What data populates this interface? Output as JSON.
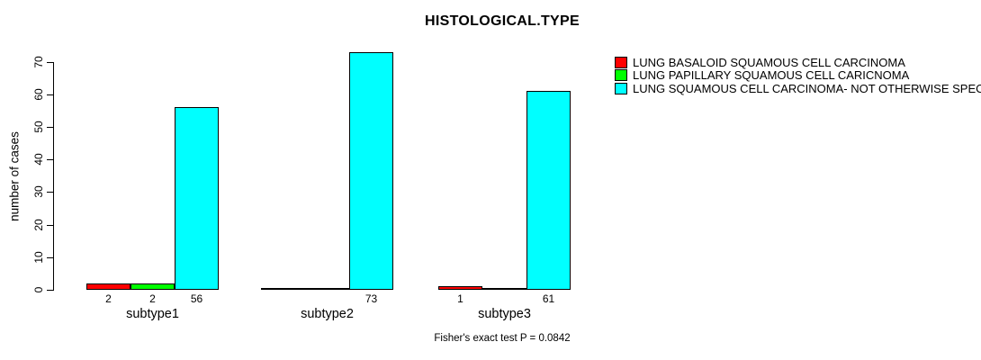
{
  "chart_data": {
    "type": "bar",
    "title": "HISTOLOGICAL.TYPE",
    "categories": [
      "subtype1",
      "subtype2",
      "subtype3"
    ],
    "series": [
      {
        "name": "LUNG BASALOID SQUAMOUS CELL CARCINOMA",
        "color": "#FF0000",
        "values": [
          2,
          0,
          1
        ]
      },
      {
        "name": "LUNG PAPILLARY SQUAMOUS CELL CARICNOMA",
        "color": "#00FF00",
        "values": [
          2,
          0,
          0
        ]
      },
      {
        "name": "LUNG SQUAMOUS CELL CARCINOMA- NOT OTHERWISE SPECIFIE",
        "color": "#00FFFF",
        "values": [
          56,
          73,
          61
        ]
      }
    ],
    "xlabel": "",
    "ylabel": "number of cases",
    "ylim": [
      0,
      70
    ],
    "y_ticks": [
      0,
      10,
      20,
      30,
      40,
      50,
      60,
      70
    ],
    "grid": false,
    "legend_position": "top-right",
    "value_labels_shown_for_nonzero_only": true,
    "annotation": "Fisher's exact test P = 0.0842",
    "background_color": "#FFFFFF",
    "text_color": "#000000"
  }
}
